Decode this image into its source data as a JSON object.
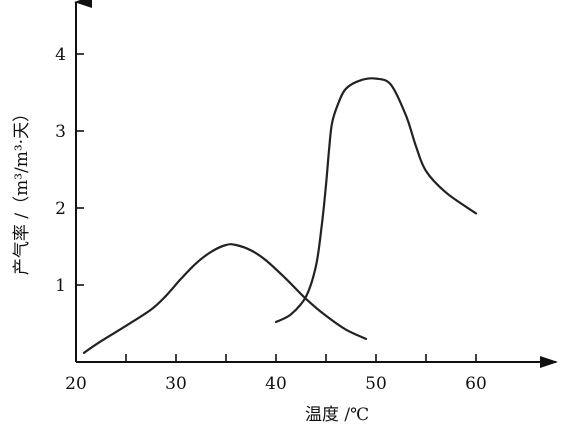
{
  "chart_data": {
    "type": "line",
    "title": "",
    "xlabel": "温度 /℃",
    "ylabel": "产气率 /（m³/m³·天）",
    "xlim": [
      20,
      66
    ],
    "ylim": [
      0,
      4.6
    ],
    "x_ticks": [
      20,
      30,
      40,
      50,
      60
    ],
    "x_minor_ticks": [
      25,
      35,
      45,
      55
    ],
    "y_ticks": [
      1,
      2,
      3,
      4
    ],
    "x_tick_labels": [
      "20",
      "30",
      "40",
      "50",
      "60"
    ],
    "y_tick_labels": [
      "1",
      "2",
      "3",
      "4"
    ],
    "grid": false,
    "legend": "none",
    "series": [
      {
        "x": [
          20.8,
          22.5,
          25,
          27.5,
          29,
          30.5,
          32,
          33.5,
          35,
          36,
          37.5,
          39,
          41,
          43,
          45,
          47,
          49
        ],
        "y": [
          0.12,
          0.27,
          0.47,
          0.68,
          0.86,
          1.08,
          1.28,
          1.43,
          1.52,
          1.52,
          1.45,
          1.32,
          1.08,
          0.82,
          0.6,
          0.42,
          0.3
        ]
      },
      {
        "x": [
          40,
          41.5,
          43,
          44,
          44.6,
          45,
          45.3,
          45.6,
          46.2,
          47,
          48.5,
          50,
          51.5,
          53,
          54,
          55,
          57,
          60
        ],
        "y": [
          0.52,
          0.62,
          0.85,
          1.25,
          1.8,
          2.3,
          2.75,
          3.1,
          3.35,
          3.55,
          3.66,
          3.68,
          3.6,
          3.2,
          2.8,
          2.48,
          2.2,
          1.93
        ]
      }
    ]
  }
}
